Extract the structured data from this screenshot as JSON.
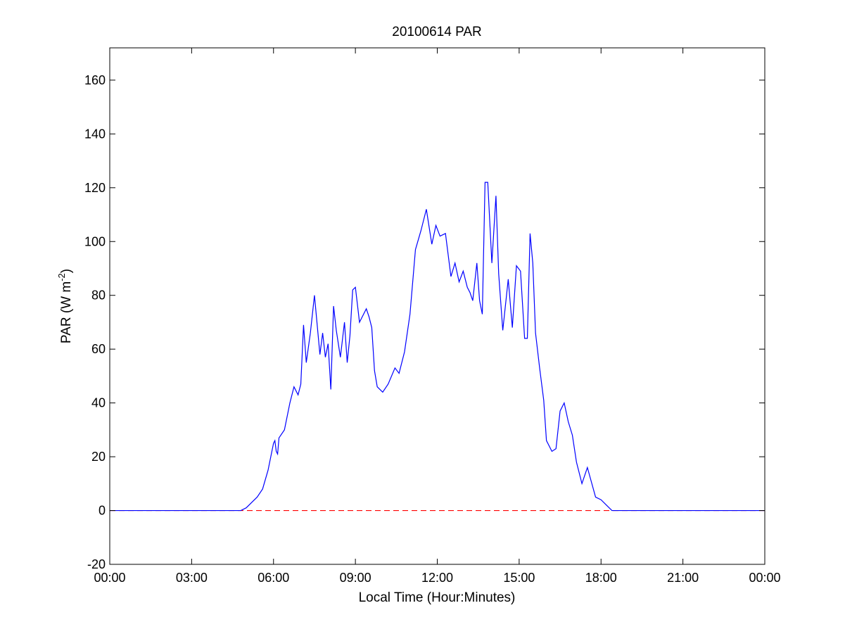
{
  "chart_data": {
    "type": "line",
    "title": "20100614 PAR",
    "xlabel": "Local Time (Hour:Minutes)",
    "ylabel": {
      "main": "PAR (W m",
      "superscript": "-2",
      "close": ")"
    },
    "xlim": [
      0,
      24
    ],
    "ylim": [
      -20,
      172
    ],
    "x_ticks": [
      0,
      3,
      6,
      9,
      12,
      15,
      18,
      21,
      24
    ],
    "x_tick_labels": [
      "00:00",
      "03:00",
      "06:00",
      "09:00",
      "12:00",
      "15:00",
      "18:00",
      "21:00",
      "00:00"
    ],
    "y_ticks": [
      -20,
      0,
      20,
      40,
      60,
      80,
      100,
      120,
      140,
      160
    ],
    "y_tick_labels": [
      "-20",
      "0",
      "20",
      "40",
      "60",
      "80",
      "100",
      "120",
      "140",
      "160"
    ],
    "grid": false,
    "legend": "none",
    "series": [
      {
        "color": "#0000ff",
        "style": "solid",
        "x": [
          0,
          1,
          2,
          3,
          4,
          4.8,
          5.0,
          5.2,
          5.4,
          5.6,
          5.8,
          6.0,
          6.05,
          6.1,
          6.15,
          6.2,
          6.4,
          6.6,
          6.75,
          6.9,
          7.0,
          7.1,
          7.2,
          7.35,
          7.5,
          7.7,
          7.8,
          7.9,
          8.0,
          8.1,
          8.2,
          8.3,
          8.45,
          8.6,
          8.7,
          8.8,
          8.9,
          9.0,
          9.15,
          9.3,
          9.4,
          9.5,
          9.6,
          9.7,
          9.8,
          10.0,
          10.2,
          10.45,
          10.6,
          10.8,
          11.0,
          11.2,
          11.4,
          11.6,
          11.8,
          11.95,
          12.1,
          12.3,
          12.5,
          12.65,
          12.8,
          12.95,
          13.1,
          13.2,
          13.3,
          13.45,
          13.55,
          13.65,
          13.75,
          13.85,
          14.0,
          14.15,
          14.25,
          14.4,
          14.6,
          14.75,
          14.9,
          15.05,
          15.2,
          15.3,
          15.4,
          15.5,
          15.6,
          15.75,
          15.9,
          16.0,
          16.1,
          16.2,
          16.35,
          16.5,
          16.65,
          16.8,
          16.95,
          17.1,
          17.3,
          17.5,
          17.8,
          18.0,
          18.2,
          18.4,
          18.5,
          18.7,
          18.9,
          19.1,
          19.3,
          20,
          21,
          22,
          23,
          24
        ],
        "values": [
          0,
          0,
          0,
          0,
          0,
          0,
          1,
          3,
          5,
          8,
          15,
          25,
          26,
          22,
          21,
          27,
          30,
          40,
          46,
          43,
          47,
          69,
          55,
          66,
          80,
          58,
          66,
          57,
          62,
          45,
          76,
          67,
          57,
          70,
          55,
          65,
          82,
          83,
          70,
          73,
          75,
          72,
          68,
          52,
          46,
          44,
          47,
          53,
          51,
          59,
          73,
          97,
          104,
          112,
          99,
          106,
          102,
          103,
          87,
          92,
          85,
          89,
          83,
          81,
          78,
          92,
          78,
          73,
          122,
          122,
          92,
          117,
          88,
          67,
          86,
          68,
          91,
          89,
          64,
          64,
          103,
          92,
          66,
          53,
          41,
          26,
          24,
          22,
          23,
          37,
          40,
          33,
          28,
          18,
          10,
          16,
          5,
          4,
          2,
          0,
          0,
          0,
          0,
          0,
          0,
          0,
          0,
          0,
          0,
          0
        ]
      },
      {
        "color": "#ff0000",
        "style": "dashed",
        "x": [
          0,
          24
        ],
        "values": [
          0,
          0
        ]
      }
    ]
  }
}
